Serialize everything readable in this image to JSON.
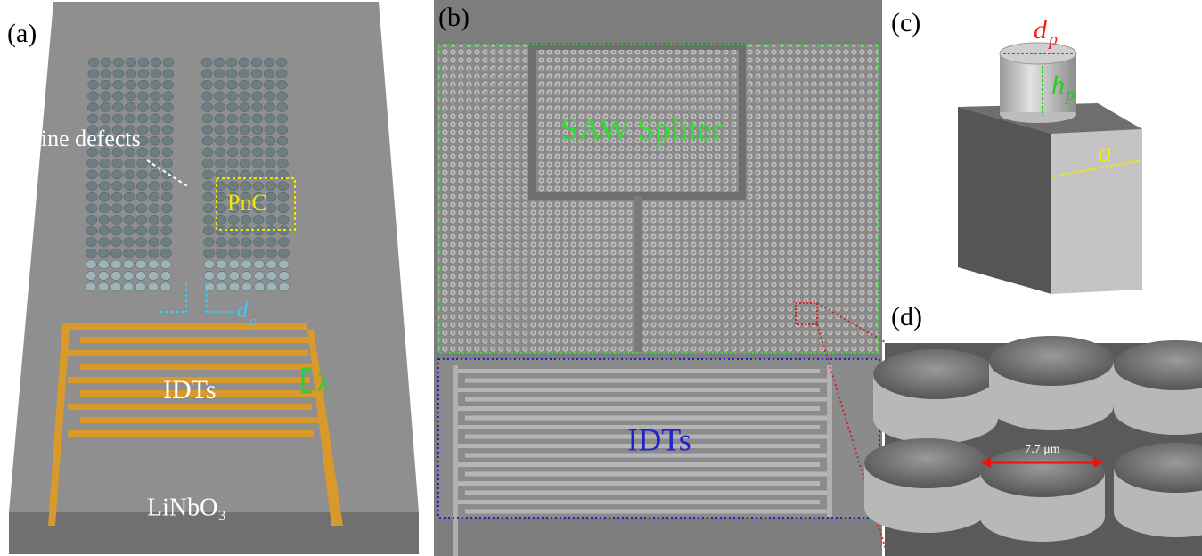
{
  "panel_a": {
    "label": "(a)",
    "line_defects": "Line defects",
    "pnc": "PnC",
    "dc": {
      "main": "d",
      "sub": "c"
    },
    "lambda": "λ",
    "idts": "IDTs",
    "substrate": "LiNbO₃"
  },
  "panel_b": {
    "label": "(b)",
    "splitter": "SAW Spliter",
    "idts": "IDTs"
  },
  "panel_c": {
    "label": "(c)",
    "dp": {
      "main": "d",
      "sub": "p"
    },
    "hp": {
      "main": "h",
      "sub": "p"
    },
    "a": "a"
  },
  "panel_d": {
    "label": "(d)",
    "scale": "7.7 μm"
  }
}
